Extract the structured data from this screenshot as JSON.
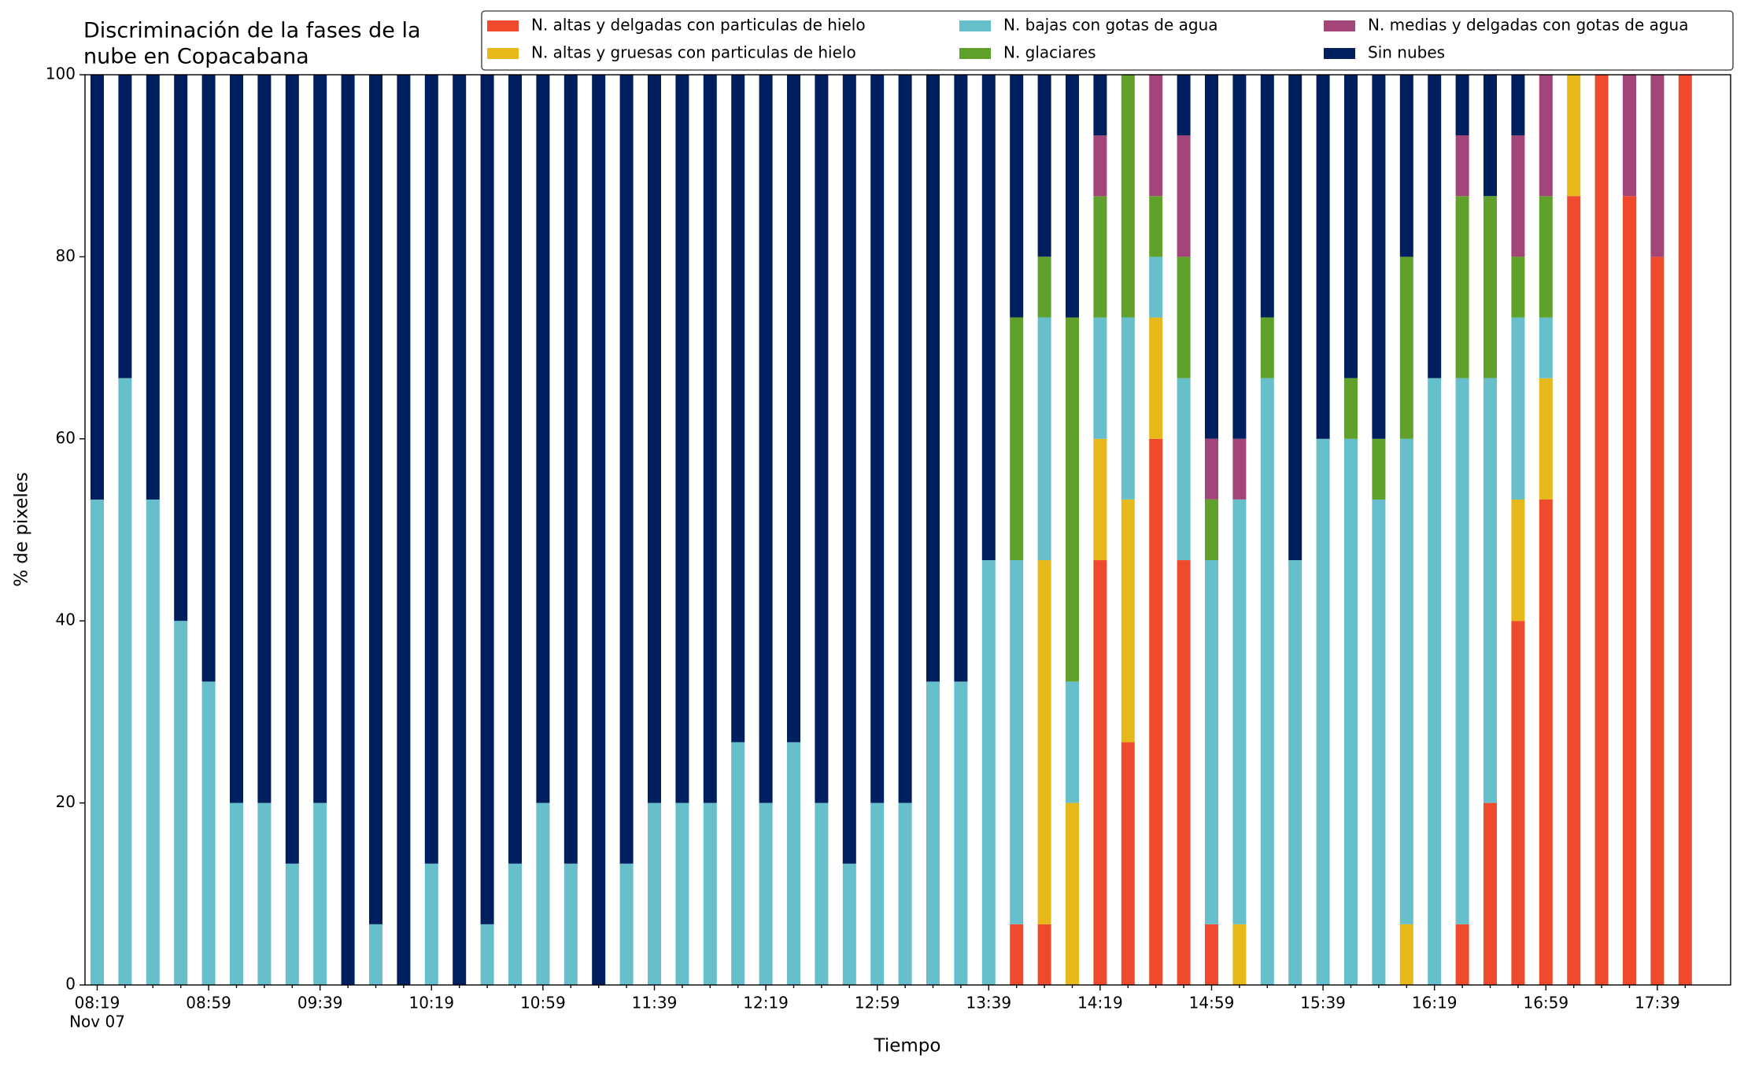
{
  "chart_data": {
    "type": "stacked_bar",
    "title": [
      "Discriminación de la fases de la",
      "nube en Copacabana"
    ],
    "x_label": "Tiempo",
    "y_label": "% de pixeles",
    "date_label": "Nov 07",
    "categories": [
      "08:19",
      null,
      null,
      null,
      "08:59",
      null,
      null,
      null,
      "09:39",
      null,
      null,
      null,
      "10:19",
      null,
      null,
      null,
      "10:59",
      null,
      null,
      null,
      "11:39",
      null,
      null,
      null,
      "12:19",
      null,
      null,
      null,
      "12:59",
      null,
      null,
      null,
      "13:39",
      null,
      null,
      null,
      "14:19",
      null,
      null,
      null,
      "14:59",
      null,
      null,
      null,
      "15:39",
      null,
      null,
      null,
      "16:19",
      null,
      null,
      null,
      "16:59",
      null,
      null,
      null,
      "17:39",
      null
    ],
    "ylim": [
      0,
      100
    ],
    "yticks": [
      0,
      20,
      40,
      60,
      80,
      100
    ],
    "legend": "top-right",
    "series": [
      {
        "name": "N. altas y delgadas con particulas de hielo",
        "color": "#f04a2c",
        "values": [
          0,
          0,
          0,
          0,
          0,
          0,
          0,
          0,
          0,
          0,
          0,
          0,
          0,
          0,
          0,
          0,
          0,
          0,
          0,
          0,
          0,
          0,
          0,
          0,
          0,
          0,
          0,
          0,
          0,
          0,
          0,
          0,
          0,
          6.67,
          6.67,
          0,
          46.67,
          26.67,
          60,
          46.67,
          6.67,
          0,
          0,
          0,
          0,
          0,
          0,
          0,
          0,
          6.67,
          20,
          40,
          53.33,
          86.67,
          100,
          86.67,
          80,
          100
        ]
      },
      {
        "name": "N. altas y gruesas con particulas de hielo",
        "color": "#e6b81a",
        "values": [
          0,
          0,
          0,
          0,
          0,
          0,
          0,
          0,
          0,
          0,
          0,
          0,
          0,
          0,
          0,
          0,
          0,
          0,
          0,
          0,
          0,
          0,
          0,
          0,
          0,
          0,
          0,
          0,
          0,
          0,
          0,
          0,
          0,
          0,
          40,
          20,
          13.33,
          26.67,
          13.33,
          0,
          0,
          6.67,
          0,
          0,
          0,
          0,
          0,
          6.67,
          0,
          0,
          0,
          13.33,
          13.33,
          13.33,
          0,
          0,
          0,
          0
        ]
      },
      {
        "name": "N. bajas con gotas de agua",
        "color": "#66bfca",
        "values": [
          53.33,
          66.67,
          53.33,
          40,
          33.33,
          20,
          20,
          13.33,
          20,
          0,
          6.67,
          0,
          13.33,
          0,
          6.67,
          13.33,
          20,
          13.33,
          0,
          13.33,
          20,
          20,
          20,
          26.67,
          20,
          26.67,
          20,
          13.33,
          20,
          20,
          33.33,
          33.33,
          46.67,
          40,
          26.67,
          13.33,
          13.33,
          20,
          6.67,
          20,
          40,
          46.67,
          66.67,
          46.67,
          60,
          60,
          53.33,
          53.33,
          66.67,
          60,
          46.67,
          20,
          6.67,
          0,
          0,
          0,
          0,
          0
        ]
      },
      {
        "name": "N. glaciares",
        "color": "#5fa12a",
        "values": [
          0,
          0,
          0,
          0,
          0,
          0,
          0,
          0,
          0,
          0,
          0,
          0,
          0,
          0,
          0,
          0,
          0,
          0,
          0,
          0,
          0,
          0,
          0,
          0,
          0,
          0,
          0,
          0,
          0,
          0,
          0,
          0,
          0,
          26.67,
          6.67,
          40,
          13.33,
          26.67,
          6.67,
          13.33,
          6.67,
          0,
          6.67,
          0,
          0,
          6.67,
          6.67,
          20,
          0,
          20,
          20,
          6.67,
          13.33,
          0,
          0,
          0,
          0,
          0
        ]
      },
      {
        "name": "N. medias y delgadas con gotas de agua",
        "color": "#a4457a",
        "values": [
          0,
          0,
          0,
          0,
          0,
          0,
          0,
          0,
          0,
          0,
          0,
          0,
          0,
          0,
          0,
          0,
          0,
          0,
          0,
          0,
          0,
          0,
          0,
          0,
          0,
          0,
          0,
          0,
          0,
          0,
          0,
          0,
          0,
          0,
          0,
          0,
          6.67,
          0,
          13.33,
          13.33,
          6.67,
          6.67,
          0,
          0,
          0,
          0,
          0,
          0,
          0,
          6.67,
          0,
          13.33,
          13.33,
          0,
          0,
          13.33,
          20,
          0
        ]
      },
      {
        "name": "Sin nubes",
        "color": "#001f5e",
        "values": [
          46.67,
          33.33,
          46.67,
          60,
          66.67,
          80,
          80,
          86.67,
          80,
          100,
          93.33,
          100,
          86.67,
          100,
          93.33,
          86.67,
          80,
          86.67,
          100,
          86.67,
          80,
          80,
          80,
          73.33,
          80,
          73.33,
          80,
          86.67,
          80,
          80,
          66.67,
          66.67,
          53.33,
          26.67,
          20,
          26.67,
          6.67,
          0,
          0,
          6.67,
          40,
          40,
          26.67,
          53.33,
          40,
          33.33,
          40,
          20,
          33.33,
          6.67,
          13.33,
          6.67,
          0,
          0,
          0,
          0,
          0,
          0
        ]
      }
    ]
  }
}
